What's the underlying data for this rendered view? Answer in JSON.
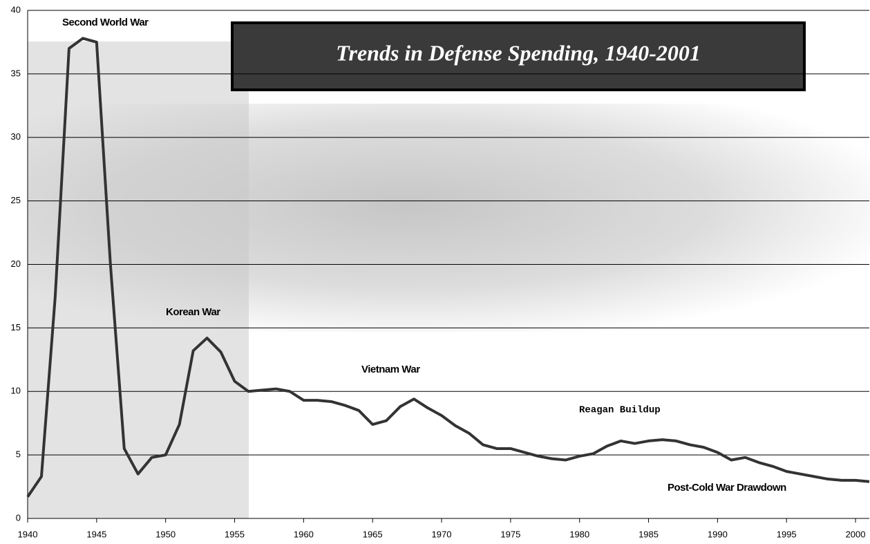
{
  "chart_data": {
    "type": "line",
    "title": "Trends in Defense Spending, 1940-2001",
    "x": [
      1940,
      1941,
      1942,
      1943,
      1944,
      1945,
      1946,
      1947,
      1948,
      1949,
      1950,
      1951,
      1952,
      1953,
      1954,
      1955,
      1956,
      1957,
      1958,
      1959,
      1960,
      1961,
      1962,
      1963,
      1964,
      1965,
      1966,
      1967,
      1968,
      1969,
      1970,
      1971,
      1972,
      1973,
      1974,
      1975,
      1976,
      1977,
      1978,
      1979,
      1980,
      1981,
      1982,
      1983,
      1984,
      1985,
      1986,
      1987,
      1988,
      1989,
      1990,
      1991,
      1992,
      1993,
      1994,
      1995,
      1996,
      1997,
      1998,
      1999,
      2000,
      2001
    ],
    "series": [
      {
        "color": "#333333",
        "values": [
          1.7,
          3.3,
          17.5,
          37.0,
          37.8,
          37.5,
          20.0,
          5.5,
          3.5,
          4.8,
          5.0,
          7.4,
          13.2,
          14.2,
          13.1,
          10.8,
          10.0,
          10.1,
          10.2,
          10.0,
          9.3,
          9.3,
          9.2,
          8.9,
          8.5,
          7.4,
          7.7,
          8.8,
          9.4,
          8.7,
          8.1,
          7.3,
          6.7,
          5.8,
          5.5,
          5.5,
          5.2,
          4.9,
          4.7,
          4.6,
          4.9,
          5.1,
          5.7,
          6.1,
          5.9,
          6.1,
          6.2,
          6.1,
          5.8,
          5.6,
          5.2,
          4.6,
          4.8,
          4.4,
          4.1,
          3.7,
          3.5,
          3.3,
          3.1,
          3.0,
          3.0,
          2.9
        ]
      }
    ],
    "annotations": [
      "Second World War",
      "Korean War",
      "Vietnam War",
      "Reagan Buildup",
      "Post-Cold War Drawdown"
    ],
    "xlim": [
      1940,
      2001
    ],
    "xticks": [
      1940,
      1945,
      1950,
      1955,
      1960,
      1965,
      1970,
      1975,
      1980,
      1985,
      1990,
      1995,
      2000
    ],
    "ylim": [
      0,
      40
    ],
    "yticks": [
      0,
      5,
      10,
      15,
      20,
      25,
      30,
      35,
      40
    ],
    "grid": true
  }
}
